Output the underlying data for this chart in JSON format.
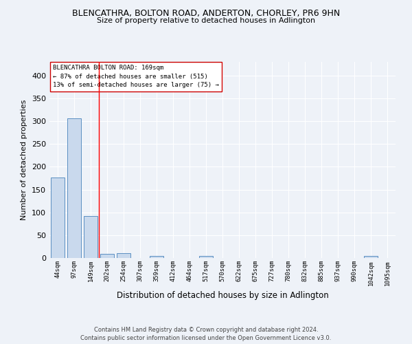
{
  "title1": "BLENCATHRA, BOLTON ROAD, ANDERTON, CHORLEY, PR6 9HN",
  "title2": "Size of property relative to detached houses in Adlington",
  "xlabel": "Distribution of detached houses by size in Adlington",
  "ylabel": "Number of detached properties",
  "bar_labels": [
    "44sqm",
    "97sqm",
    "149sqm",
    "202sqm",
    "254sqm",
    "307sqm",
    "359sqm",
    "412sqm",
    "464sqm",
    "517sqm",
    "570sqm",
    "622sqm",
    "675sqm",
    "727sqm",
    "780sqm",
    "832sqm",
    "885sqm",
    "937sqm",
    "990sqm",
    "1042sqm",
    "1095sqm"
  ],
  "bar_heights": [
    177,
    306,
    92,
    9,
    11,
    0,
    4,
    0,
    0,
    4,
    0,
    0,
    0,
    0,
    0,
    0,
    0,
    0,
    0,
    4,
    0
  ],
  "bar_color": "#c9d9ed",
  "bar_edge_color": "#5a8fc2",
  "red_line_x": 2.5,
  "annotation_title": "BLENCATHRA BOLTON ROAD: 169sqm",
  "annotation_line1": "← 87% of detached houses are smaller (515)",
  "annotation_line2": "13% of semi-detached houses are larger (75) →",
  "footer1": "Contains HM Land Registry data © Crown copyright and database right 2024.",
  "footer2": "Contains public sector information licensed under the Open Government Licence v3.0.",
  "ylim": [
    0,
    430
  ],
  "yticks": [
    0,
    50,
    100,
    150,
    200,
    250,
    300,
    350,
    400
  ],
  "background_color": "#eef2f8",
  "grid_color": "#ffffff"
}
